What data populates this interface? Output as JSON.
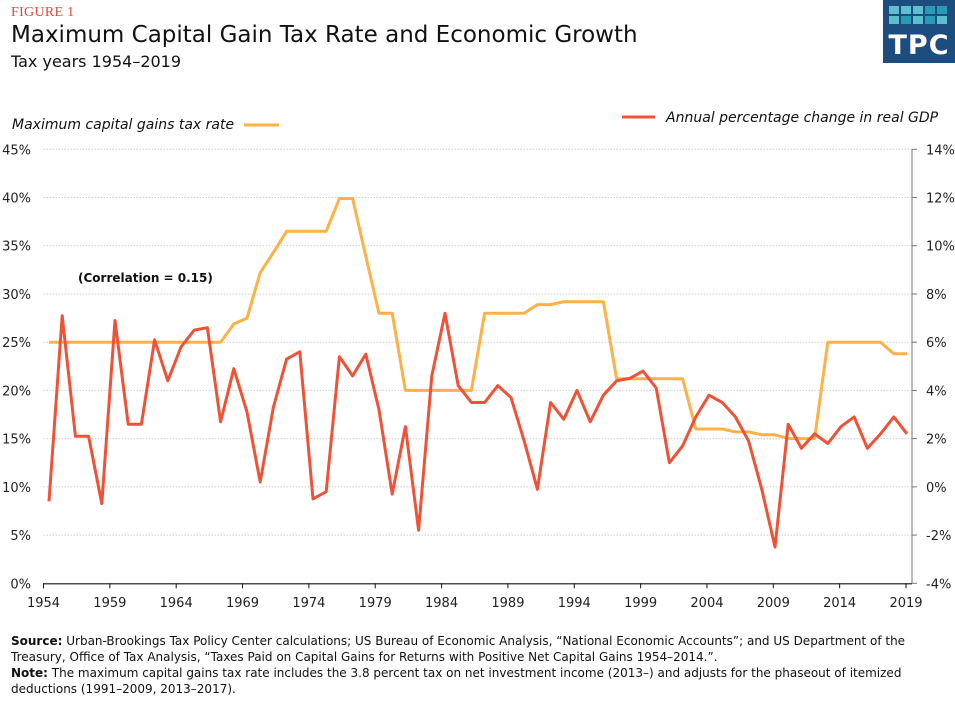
{
  "header": {
    "figure_label": "FIGURE 1",
    "title": "Maximum Capital Gain Tax Rate and Economic Growth",
    "subtitle": "Tax years 1954–2019",
    "logo_text": "TPC"
  },
  "footer": {
    "source_label": "Source:",
    "source_text": "Urban-Brookings Tax Policy Center calculations; US Bureau of Economic Analysis, “National Economic Accounts”; and US Department of the Treasury, Office of Tax Analysis, “Taxes Paid on Capital Gains for Returns with Positive Net Capital Gains 1954–2014.”.",
    "note_label": "Note:",
    "note_text": "The maximum capital gains tax rate includes the 3.8 percent tax on net investment income (2013–) and adjusts for the phaseout of itemized deductions (1991–2009, 2013–2017)."
  },
  "chart_data": {
    "type": "line",
    "title": "Maximum Capital Gain Tax Rate and Economic Growth",
    "annotation": "(Correlation = 0.15)",
    "grid": true,
    "x": [
      1954,
      1955,
      1956,
      1957,
      1958,
      1959,
      1960,
      1961,
      1962,
      1963,
      1964,
      1965,
      1966,
      1967,
      1968,
      1969,
      1970,
      1971,
      1972,
      1973,
      1974,
      1975,
      1976,
      1977,
      1978,
      1979,
      1980,
      1981,
      1982,
      1983,
      1984,
      1985,
      1986,
      1987,
      1988,
      1989,
      1990,
      1991,
      1992,
      1993,
      1994,
      1995,
      1996,
      1997,
      1998,
      1999,
      2000,
      2001,
      2002,
      2003,
      2004,
      2005,
      2006,
      2007,
      2008,
      2009,
      2010,
      2011,
      2012,
      2013,
      2014,
      2015,
      2016,
      2017,
      2018,
      2019
    ],
    "x_ticks": [
      "1954",
      "1959",
      "1964",
      "1969",
      "1974",
      "1979",
      "1984",
      "1989",
      "1994",
      "1999",
      "2004",
      "2009",
      "2014",
      "2019"
    ],
    "left_axis": {
      "ylim": [
        0,
        45
      ],
      "ticks": [
        "0%",
        "5%",
        "10%",
        "15%",
        "20%",
        "25%",
        "30%",
        "35%",
        "40%",
        "45%"
      ]
    },
    "right_axis": {
      "ylim": [
        -4,
        14
      ],
      "ticks": [
        "-4%",
        "-2%",
        "0%",
        "2%",
        "4%",
        "6%",
        "8%",
        "10%",
        "12%",
        "14%"
      ]
    },
    "series": [
      {
        "name": "Maximum capital gains tax rate",
        "axis": "left",
        "color": "#fdb146",
        "legend_position": "top-left",
        "values": [
          25,
          25,
          25,
          25,
          25,
          25,
          25,
          25,
          25,
          25,
          25,
          25,
          25,
          25,
          26.9,
          27.5,
          32.2,
          34.3,
          36.5,
          36.5,
          36.5,
          36.5,
          39.9,
          39.9,
          33.9,
          28,
          28,
          20,
          20,
          20,
          20,
          20,
          20,
          28,
          28,
          28,
          28,
          28.9,
          28.9,
          29.2,
          29.2,
          29.2,
          29.2,
          21.2,
          21.2,
          21.2,
          21.2,
          21.2,
          21.2,
          16,
          16,
          16,
          15.7,
          15.7,
          15.4,
          15.4,
          15,
          15,
          15,
          25,
          25,
          25,
          25,
          25,
          23.8,
          23.8
        ]
      },
      {
        "name": "Annual percentage change in real GDP",
        "axis": "right",
        "color": "#ef5237",
        "legend_position": "top-right",
        "values": [
          -0.6,
          7.1,
          2.1,
          2.1,
          -0.7,
          6.9,
          2.6,
          2.6,
          6.1,
          4.4,
          5.8,
          6.5,
          6.6,
          2.7,
          4.9,
          3.1,
          0.2,
          3.3,
          5.3,
          5.6,
          -0.5,
          -0.2,
          5.4,
          4.6,
          5.5,
          3.2,
          -0.3,
          2.5,
          -1.8,
          4.6,
          7.2,
          4.2,
          3.5,
          3.5,
          4.2,
          3.7,
          1.9,
          -0.1,
          3.5,
          2.8,
          4.0,
          2.7,
          3.8,
          4.4,
          4.5,
          4.8,
          4.1,
          1.0,
          1.7,
          2.9,
          3.8,
          3.5,
          2.9,
          1.9,
          -0.1,
          -2.5,
          2.6,
          1.6,
          2.2,
          1.8,
          2.5,
          2.9,
          1.6,
          2.2,
          2.9,
          2.2
        ]
      }
    ]
  }
}
